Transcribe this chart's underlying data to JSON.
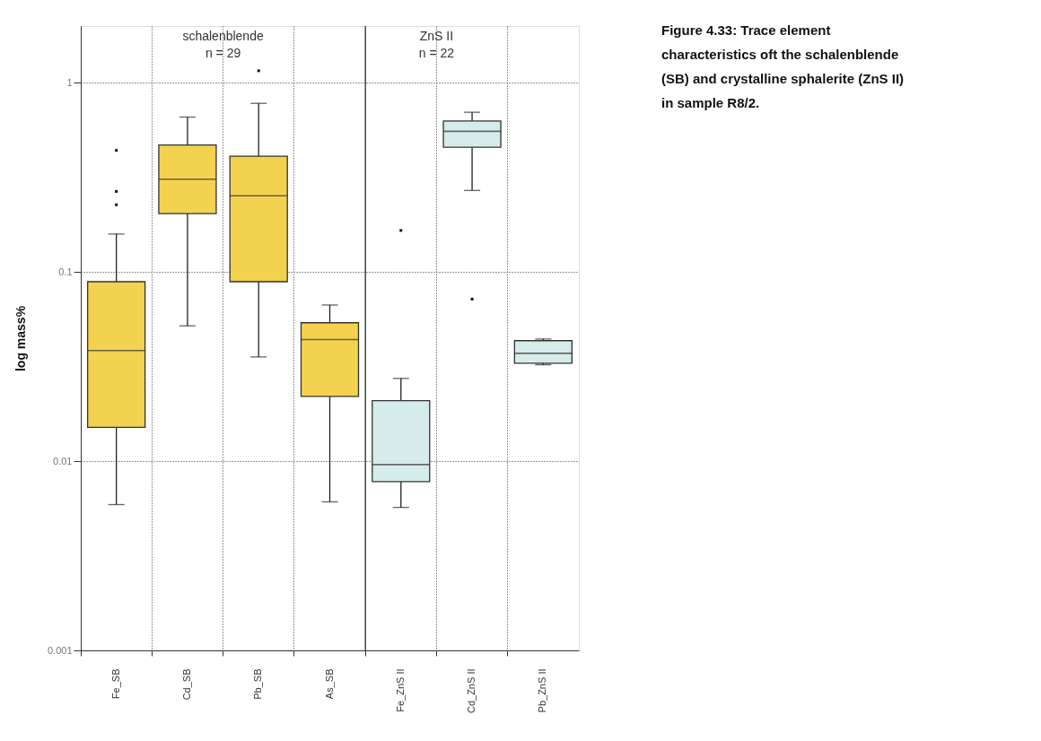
{
  "chart_data": {
    "type": "box",
    "ylabel": "log mass%",
    "categories": [
      "Fe_SB",
      "Cd_SB",
      "Pb_SB",
      "As_SB",
      "Fe_ZnS II",
      "Cd_ZnS II",
      "Pb_ZnS II"
    ],
    "colors": [
      "#f2d24e",
      "#f2d24e",
      "#f2d24e",
      "#f2d24e",
      "#d6ecea",
      "#d6ecea",
      "#d6ecea"
    ],
    "boxes": [
      {
        "low": 0.0059,
        "q1": 0.0151,
        "median": 0.0385,
        "q3": 0.089,
        "high": 0.159,
        "outliers": [
          0.44,
          0.267,
          0.227
        ]
      },
      {
        "low": 0.052,
        "q1": 0.204,
        "median": 0.31,
        "q3": 0.47,
        "high": 0.66
      },
      {
        "low": 0.0356,
        "q1": 0.089,
        "median": 0.253,
        "q3": 0.41,
        "high": 0.78,
        "outliers": [
          1.16
        ]
      },
      {
        "low": 0.0061,
        "q1": 0.022,
        "median": 0.044,
        "q3": 0.054,
        "high": 0.067
      },
      {
        "low": 0.0057,
        "q1": 0.0078,
        "median": 0.0096,
        "q3": 0.0209,
        "high": 0.0274,
        "outliers": [
          0.166
        ]
      },
      {
        "low": 0.27,
        "q1": 0.457,
        "median": 0.555,
        "q3": 0.63,
        "high": 0.7,
        "outliers": [
          0.072
        ]
      },
      {
        "low": 0.0324,
        "q1": 0.033,
        "median": 0.0372,
        "q3": 0.0434,
        "high": 0.0443
      }
    ],
    "log": true,
    "ylim": [
      0.001,
      2
    ],
    "yticks": [
      0.001,
      0.01,
      0.1,
      1
    ],
    "grid": true,
    "ref_lines": [
      {
        "axis": "x",
        "value": "Fe_ZnS II",
        "line_style": "solid",
        "color": "#333333"
      }
    ],
    "annotations": [
      "schalenblende\nn = 29",
      "ZnS II\nn = 22",
      "Figure 4.33: Trace element characteristics oft the schalenblende (SB) and crystalline sphalerite (ZnS II) in sample R8/2."
    ]
  }
}
